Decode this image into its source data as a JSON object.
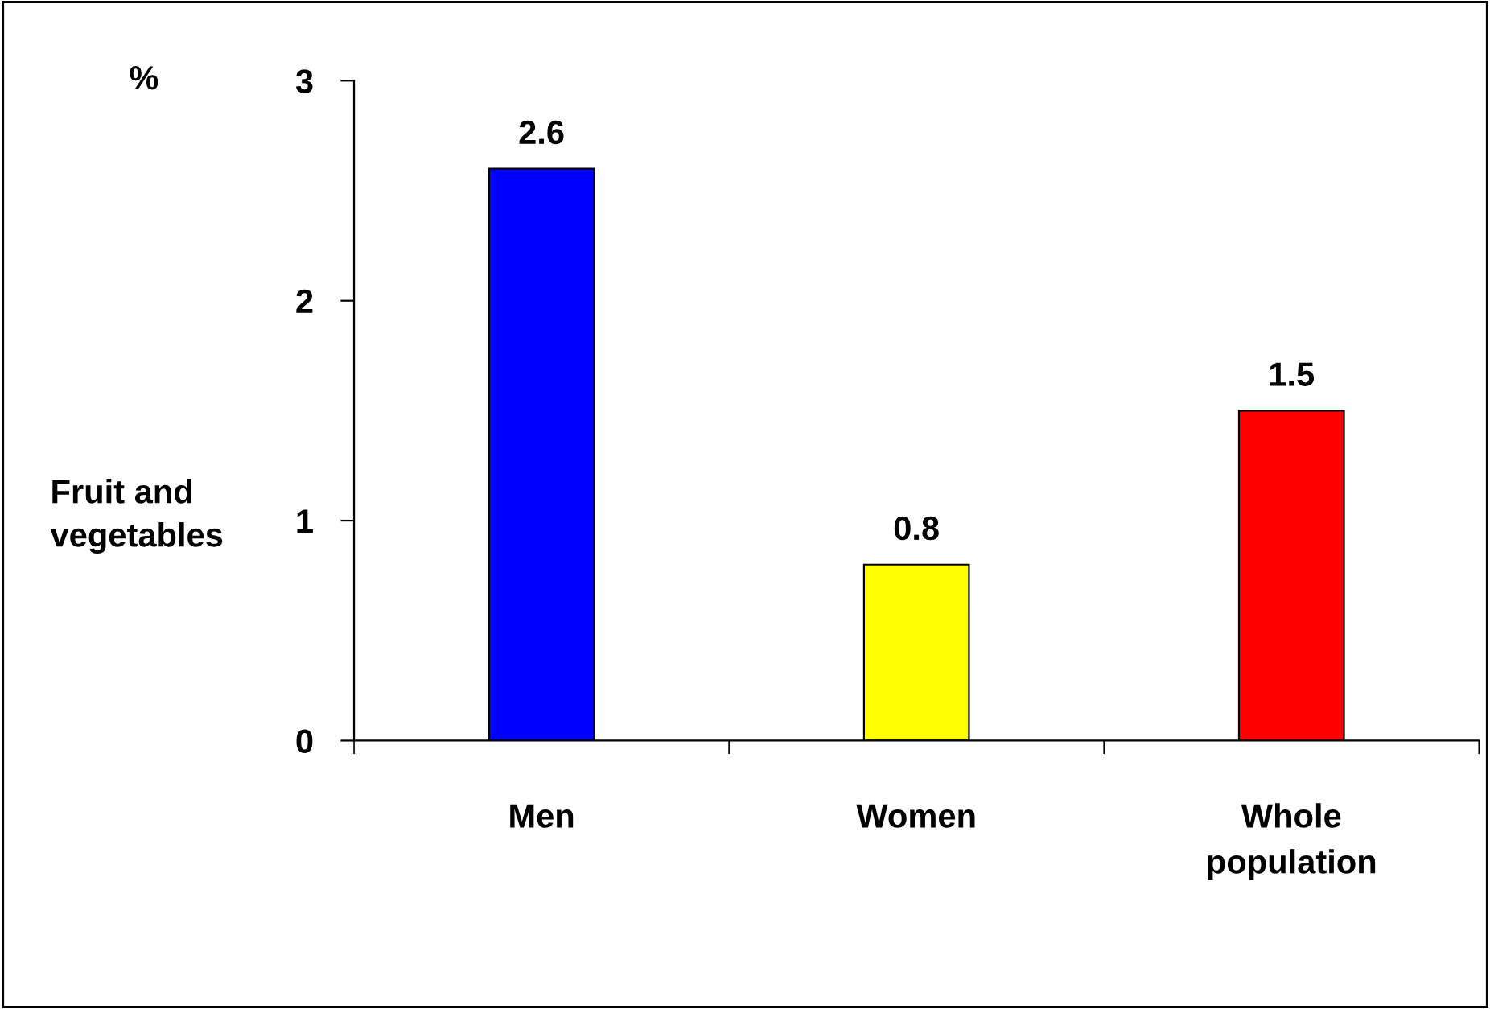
{
  "chart_data": {
    "type": "bar",
    "categories": [
      "Men",
      "Women",
      "Whole\npopulation"
    ],
    "values": [
      2.6,
      0.8,
      1.5
    ],
    "colors": [
      "#0000ff",
      "#ffff00",
      "#ff0000"
    ],
    "ylabel": "Fruit and\nvegetables",
    "annotations": [
      "%"
    ],
    "ylim": [
      0,
      3
    ],
    "yticks": [
      0,
      1,
      2,
      3
    ],
    "data_labels": true,
    "grid": false,
    "legend": false
  }
}
